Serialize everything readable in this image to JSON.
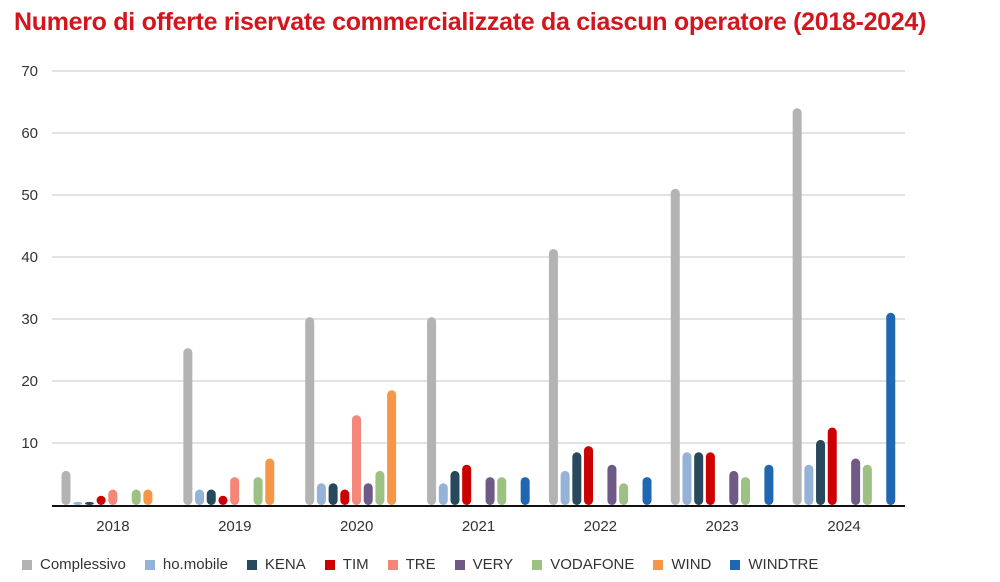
{
  "chart_data": {
    "type": "bar",
    "title": "Numero di offerte riservate commercializzate da ciascun operatore (2018-2024)",
    "categories": [
      "2018",
      "2019",
      "2020",
      "2021",
      "2022",
      "2023",
      "2024"
    ],
    "ylim": [
      0,
      70
    ],
    "yticks": [
      "70",
      "60",
      "50",
      "40",
      "30",
      "20",
      "10"
    ],
    "grid": true,
    "legend_position": "bottom",
    "series": [
      {
        "name": "Complessivo",
        "color": "#b3b3b3",
        "values": [
          5.5,
          25.3,
          30.3,
          30.3,
          41.3,
          51,
          64
        ]
      },
      {
        "name": "ho.mobile",
        "color": "#95b3d7",
        "values": [
          0.5,
          2.5,
          3.5,
          3.5,
          5.5,
          8.5,
          6.5
        ]
      },
      {
        "name": "KENA",
        "color": "#26495c",
        "values": [
          0.5,
          2.5,
          3.5,
          5.5,
          8.5,
          8.5,
          10.5
        ]
      },
      {
        "name": "TIM",
        "color": "#cc0000",
        "values": [
          1.5,
          1.5,
          2.5,
          6.5,
          9.5,
          8.5,
          12.5
        ]
      },
      {
        "name": "TRE",
        "color": "#f4877a",
        "values": [
          2.5,
          4.5,
          14.5,
          0,
          0,
          0,
          0
        ]
      },
      {
        "name": "VERY",
        "color": "#6e5a85",
        "values": [
          0,
          0,
          3.5,
          4.5,
          6.5,
          5.5,
          7.5
        ]
      },
      {
        "name": "VODAFONE",
        "color": "#9dc183",
        "values": [
          2.5,
          4.5,
          5.5,
          4.5,
          3.5,
          4.5,
          6.5
        ]
      },
      {
        "name": "WIND",
        "color": "#f79646",
        "values": [
          2.5,
          7.5,
          18.5,
          0,
          0,
          0,
          0
        ]
      },
      {
        "name": "WINDTRE",
        "color": "#1f67b1",
        "values": [
          0,
          0,
          0,
          4.5,
          4.5,
          6.5,
          31
        ]
      }
    ]
  }
}
